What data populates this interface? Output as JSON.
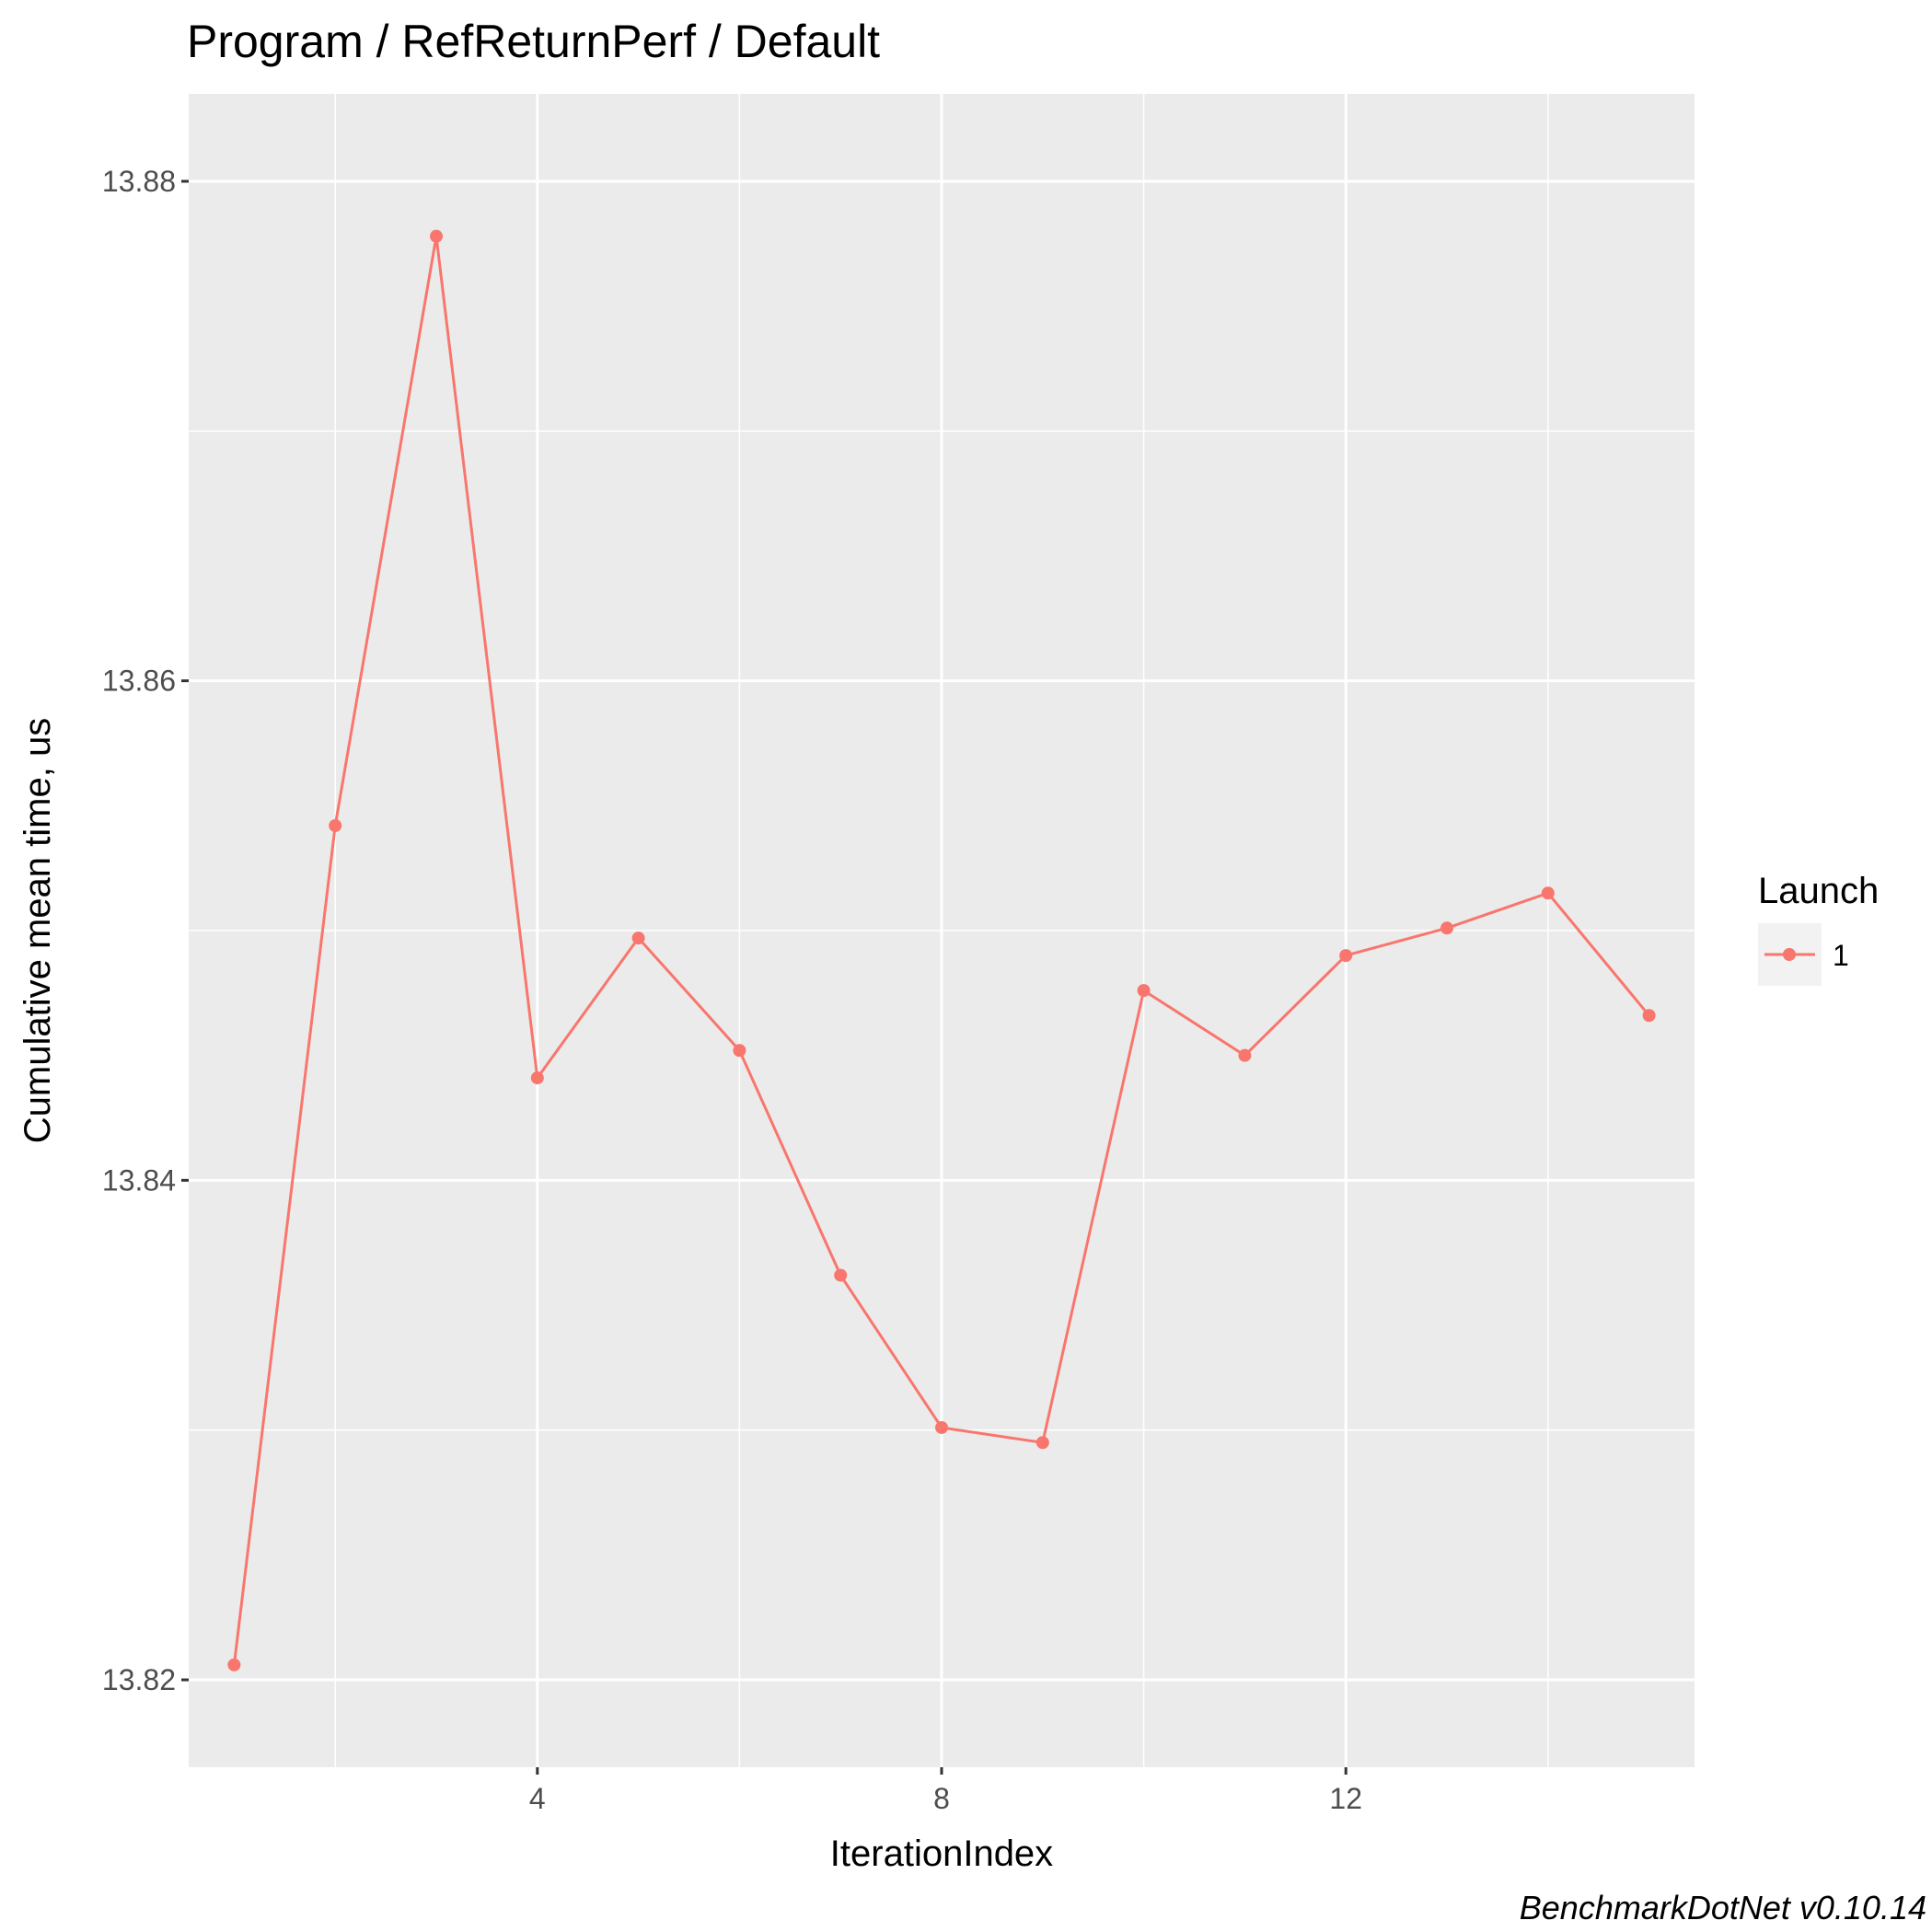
{
  "chart_data": {
    "type": "line",
    "title": "Program / RefReturnPerf / Default",
    "xlabel": "IterationIndex",
    "ylabel": "Cumulative mean time, us",
    "caption": "BenchmarkDotNet v0.10.14",
    "xlim": [
      0.55,
      15.45
    ],
    "ylim": [
      13.8165,
      13.8835
    ],
    "xticks": [
      4,
      8,
      12
    ],
    "xtick_labels": [
      "4",
      "8",
      "12"
    ],
    "xminor": [
      2,
      6,
      10,
      14
    ],
    "yticks": [
      13.82,
      13.84,
      13.86,
      13.88
    ],
    "ytick_labels": [
      "13.82",
      "13.84",
      "13.86",
      "13.88"
    ],
    "yminor": [
      13.83,
      13.85,
      13.87
    ],
    "grid": true,
    "legend": {
      "title": "Launch",
      "position": "right"
    },
    "series": [
      {
        "name": "1",
        "color": "#F8766D",
        "x": [
          1,
          2,
          3,
          4,
          5,
          6,
          7,
          8,
          9,
          10,
          11,
          12,
          13,
          14,
          15
        ],
        "y": [
          13.8206,
          13.8542,
          13.8778,
          13.8441,
          13.8497,
          13.8452,
          13.8362,
          13.8301,
          13.8295,
          13.8476,
          13.845,
          13.849,
          13.8501,
          13.8515,
          13.8466
        ]
      }
    ]
  }
}
